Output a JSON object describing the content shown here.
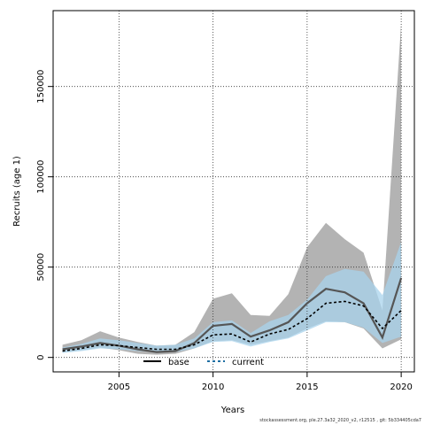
{
  "chart_data": {
    "type": "line",
    "title": "",
    "xlabel": "Years",
    "ylabel": "Recruits (age 1)",
    "xlim": [
      2001.5,
      2020.7
    ],
    "ylim": [
      -8000,
      192000
    ],
    "x_ticks": [
      2005,
      2010,
      2015,
      2020
    ],
    "y_ticks": [
      0,
      50000,
      100000,
      150000
    ],
    "grid": "dotted",
    "legend_position": "bottom-center",
    "x": [
      2002,
      2003,
      2004,
      2005,
      2006,
      2007,
      2008,
      2009,
      2010,
      2011,
      2012,
      2013,
      2014,
      2015,
      2016,
      2017,
      2018,
      2019,
      2020
    ],
    "series": [
      {
        "name": "base",
        "line_style": "solid",
        "line_color": "#000000",
        "band_color": "#b3b3b3",
        "values": [
          4500,
          6000,
          8000,
          6500,
          4500,
          3000,
          3500,
          8000,
          17500,
          18500,
          11500,
          15000,
          19500,
          30000,
          38000,
          36000,
          30000,
          11000,
          44000
        ],
        "lower": [
          3000,
          4000,
          5500,
          4000,
          2000,
          1500,
          2000,
          5000,
          9000,
          9500,
          7000,
          9000,
          11000,
          16000,
          20000,
          19500,
          16000,
          5000,
          10000
        ],
        "upper": [
          7000,
          9500,
          14500,
          11000,
          8500,
          6500,
          7000,
          14000,
          32500,
          35500,
          23500,
          23000,
          35000,
          61000,
          74500,
          65500,
          58000,
          26000,
          185000
        ]
      },
      {
        "name": "current",
        "line_style": "dashed",
        "line_color": "#1f6fa3",
        "band_color": "#a8d3ec",
        "values": [
          3500,
          5000,
          7000,
          6500,
          5500,
          4500,
          4500,
          7000,
          12500,
          13000,
          8500,
          13000,
          15500,
          21500,
          30000,
          31000,
          28500,
          16000,
          26000
        ],
        "lower": [
          2500,
          3500,
          5000,
          4500,
          3500,
          3000,
          3000,
          5000,
          8500,
          9000,
          6000,
          8500,
          10500,
          15000,
          19500,
          19500,
          16500,
          8000,
          11500
        ],
        "upper": [
          5500,
          7500,
          10500,
          9500,
          8000,
          6500,
          7000,
          10500,
          19500,
          20500,
          13500,
          20000,
          23500,
          32000,
          45000,
          49000,
          47500,
          34500,
          64000
        ]
      }
    ]
  },
  "legend": {
    "base_label": "base",
    "current_label": "current"
  },
  "footer": "stockassessment.org, ple.27.3a32_2020_v2, r12515 , git: 5b334405cda7"
}
